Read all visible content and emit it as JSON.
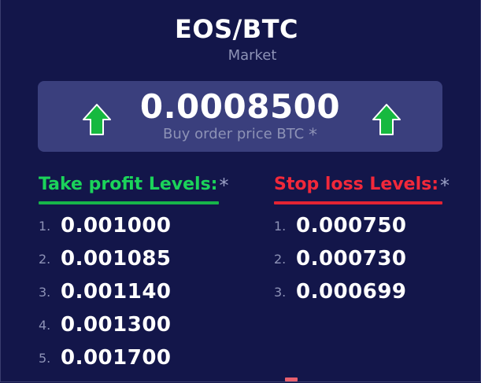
{
  "header": {
    "pair": "EOS/BTC",
    "order_type": "Market"
  },
  "price": {
    "value": "0.0008500",
    "label": "Buy order price BTC",
    "required_mark": "*",
    "left_icon": "up-arrow-icon",
    "right_icon": "up-arrow-icon"
  },
  "take_profit": {
    "title": "Take profit Levels:",
    "required_mark": "*",
    "color": "#1bd35a",
    "levels": [
      {
        "num": "1.",
        "value": "0.001000"
      },
      {
        "num": "2.",
        "value": "0.001085"
      },
      {
        "num": "3.",
        "value": "0.001140"
      },
      {
        "num": "4.",
        "value": "0.001300"
      },
      {
        "num": "5.",
        "value": "0.001700"
      }
    ]
  },
  "stop_loss": {
    "title": "Stop loss Levels:",
    "required_mark": "*",
    "color": "#f2283a",
    "levels": [
      {
        "num": "1.",
        "value": "0.000750"
      },
      {
        "num": "2.",
        "value": "0.000730"
      },
      {
        "num": "3.",
        "value": "0.000699"
      }
    ]
  },
  "colors": {
    "background": "#13164a",
    "panel": "#3a3f7d",
    "arrow_green": "#16b93f"
  }
}
